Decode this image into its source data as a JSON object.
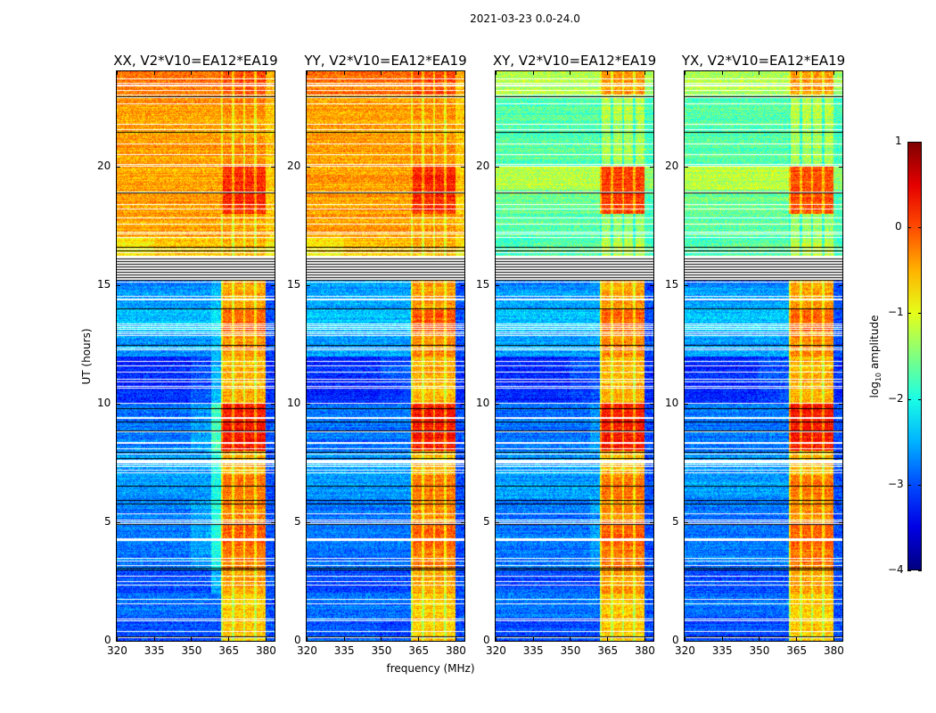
{
  "suptitle": "2021-03-23 0.0-24.0",
  "ylabel": "UT (hours)",
  "xlabel": "frequency (MHz)",
  "colorbar": {
    "label_prefix": "log",
    "label_sub": "10",
    "label_suffix": " amplitude",
    "range": [
      -4,
      1
    ],
    "ticks": [
      1,
      0,
      -1,
      -2,
      -3,
      -4
    ],
    "tick_labels": [
      "1",
      "0",
      "−1",
      "−2",
      "−3",
      "−4"
    ],
    "colormap": "jet"
  },
  "chart_data": {
    "type": "heatmap",
    "title": "2021-03-23 0.0-24.0",
    "xlabel": "frequency (MHz)",
    "ylabel": "UT (hours)",
    "xlim": [
      320,
      383.6
    ],
    "ylim": [
      0,
      24
    ],
    "xticks": [
      320,
      335,
      350,
      365,
      380
    ],
    "yticks": [
      0,
      5,
      10,
      15,
      20
    ],
    "freq_bin_edges": [
      320,
      335,
      350,
      358,
      362,
      380,
      383.6
    ],
    "time_bins_hours": "hourly rows 0-23, bottom to top",
    "value_units": "log10 amplitude",
    "panels": [
      {
        "title": "XX, V2*V10=EA12*EA19",
        "values": [
          [
            -3.0,
            -3.0,
            -3.0,
            -3.0,
            -0.6,
            -3.0
          ],
          [
            -2.8,
            -2.8,
            -2.8,
            -2.8,
            -0.6,
            -3.0
          ],
          [
            -3.0,
            -3.0,
            -3.0,
            -2.5,
            -0.4,
            -3.0
          ],
          [
            -2.8,
            -2.8,
            -2.6,
            -2.0,
            -0.2,
            -3.0
          ],
          [
            -2.8,
            -2.8,
            -2.6,
            -2.0,
            -0.1,
            -3.0
          ],
          [
            -2.8,
            -2.8,
            -2.6,
            -2.0,
            -0.3,
            -3.0
          ],
          [
            -2.6,
            -2.6,
            -2.6,
            -2.0,
            -0.2,
            -3.0
          ],
          [
            -2.6,
            -2.6,
            -2.6,
            -2.0,
            -0.5,
            -3.0
          ],
          [
            -2.8,
            -2.8,
            -2.6,
            -1.8,
            0.3,
            -3.0
          ],
          [
            -2.8,
            -2.8,
            -2.6,
            -1.8,
            0.3,
            -3.0
          ],
          [
            -3.2,
            -3.2,
            -3.0,
            -2.5,
            -0.5,
            -3.2
          ],
          [
            -3.2,
            -3.2,
            -3.0,
            -2.5,
            -0.5,
            -3.2
          ],
          [
            -2.6,
            -2.6,
            -2.6,
            -2.4,
            -0.3,
            -3.0
          ],
          [
            -2.4,
            -2.4,
            -2.4,
            -2.2,
            -0.1,
            -3.0
          ],
          [
            -2.6,
            -2.6,
            -2.6,
            -2.4,
            -0.4,
            -3.0
          ],
          [
            -2.8,
            -2.8,
            -2.8,
            -2.6,
            -0.4,
            -3.0
          ],
          [
            -0.8,
            -0.6,
            -0.6,
            -0.6,
            -0.5,
            -0.8
          ],
          [
            -0.4,
            -0.4,
            -0.4,
            -0.4,
            -0.4,
            -0.6
          ],
          [
            -0.4,
            -0.4,
            -0.4,
            -0.4,
            0.2,
            -0.6
          ],
          [
            -0.4,
            -0.4,
            -0.4,
            -0.4,
            0.2,
            -0.6
          ],
          [
            -0.4,
            -0.4,
            -0.4,
            -0.4,
            -0.3,
            -0.6
          ],
          [
            -0.4,
            -0.4,
            -0.4,
            -0.4,
            -0.4,
            -0.6
          ],
          [
            -0.4,
            -0.4,
            -0.4,
            -0.4,
            -0.3,
            -0.6
          ],
          [
            -0.2,
            -0.2,
            -0.2,
            -0.2,
            0.0,
            -0.5
          ]
        ]
      },
      {
        "title": "YY, V2*V10=EA12*EA19",
        "values": [
          [
            -2.9,
            -2.9,
            -3.0,
            -3.0,
            -0.6,
            -3.0
          ],
          [
            -2.8,
            -2.8,
            -2.8,
            -2.8,
            -0.6,
            -3.0
          ],
          [
            -3.0,
            -3.0,
            -3.0,
            -3.0,
            -0.4,
            -3.0
          ],
          [
            -2.8,
            -2.8,
            -2.8,
            -2.8,
            -0.2,
            -3.0
          ],
          [
            -2.8,
            -2.8,
            -2.8,
            -2.8,
            -0.1,
            -3.0
          ],
          [
            -2.8,
            -2.8,
            -2.8,
            -2.8,
            -0.3,
            -3.0
          ],
          [
            -2.6,
            -2.6,
            -2.6,
            -2.6,
            -0.2,
            -3.0
          ],
          [
            -2.6,
            -2.6,
            -2.6,
            -2.6,
            -0.5,
            -3.0
          ],
          [
            -2.8,
            -2.8,
            -2.8,
            -2.8,
            0.3,
            -3.0
          ],
          [
            -2.8,
            -2.8,
            -2.8,
            -2.8,
            0.3,
            -3.0
          ],
          [
            -3.2,
            -3.2,
            -3.1,
            -3.0,
            -0.5,
            -3.2
          ],
          [
            -3.2,
            -3.2,
            -3.0,
            -3.0,
            -0.5,
            -3.2
          ],
          [
            -2.6,
            -2.6,
            -2.6,
            -2.6,
            -0.3,
            -3.0
          ],
          [
            -2.4,
            -2.4,
            -2.4,
            -2.4,
            0.0,
            -3.0
          ],
          [
            -2.6,
            -2.6,
            -2.6,
            -2.6,
            -0.4,
            -3.0
          ],
          [
            -2.6,
            -2.6,
            -2.6,
            -2.6,
            -0.4,
            -3.0
          ],
          [
            -0.8,
            -0.6,
            -0.6,
            -0.6,
            -0.5,
            -0.8
          ],
          [
            -0.4,
            -0.4,
            -0.4,
            -0.4,
            -0.4,
            -0.6
          ],
          [
            -0.4,
            -0.4,
            -0.4,
            -0.4,
            0.2,
            -0.6
          ],
          [
            -0.4,
            -0.4,
            -0.4,
            -0.4,
            0.2,
            -0.6
          ],
          [
            -0.4,
            -0.4,
            -0.4,
            -0.4,
            -0.3,
            -0.6
          ],
          [
            -0.4,
            -0.4,
            -0.4,
            -0.4,
            -0.4,
            -0.6
          ],
          [
            -0.4,
            -0.4,
            -0.4,
            -0.4,
            -0.3,
            -0.6
          ],
          [
            -0.2,
            -0.2,
            -0.2,
            -0.2,
            0.0,
            -0.5
          ]
        ]
      },
      {
        "title": "XY, V2*V10=EA12*EA19",
        "values": [
          [
            -3.0,
            -3.0,
            -3.0,
            -3.0,
            -0.6,
            -3.0
          ],
          [
            -2.8,
            -2.8,
            -2.8,
            -2.8,
            -0.6,
            -3.0
          ],
          [
            -3.0,
            -3.0,
            -3.0,
            -3.0,
            -0.4,
            -3.0
          ],
          [
            -2.8,
            -2.8,
            -2.8,
            -2.6,
            -0.2,
            -3.0
          ],
          [
            -2.8,
            -2.8,
            -2.8,
            -2.6,
            -0.1,
            -3.0
          ],
          [
            -2.8,
            -2.8,
            -2.8,
            -2.6,
            -0.3,
            -3.0
          ],
          [
            -2.6,
            -2.6,
            -2.6,
            -2.6,
            -0.2,
            -3.0
          ],
          [
            -2.6,
            -2.6,
            -2.6,
            -2.6,
            -0.5,
            -3.0
          ],
          [
            -2.8,
            -2.8,
            -2.8,
            -2.6,
            0.3,
            -3.0
          ],
          [
            -2.8,
            -2.8,
            -2.8,
            -2.6,
            0.3,
            -3.0
          ],
          [
            -3.2,
            -3.2,
            -3.1,
            -3.0,
            -0.5,
            -3.2
          ],
          [
            -3.2,
            -3.2,
            -3.0,
            -3.0,
            -0.5,
            -3.2
          ],
          [
            -2.6,
            -2.6,
            -2.6,
            -2.6,
            -0.3,
            -3.0
          ],
          [
            -2.4,
            -2.4,
            -2.4,
            -2.4,
            -0.1,
            -3.0
          ],
          [
            -2.6,
            -2.6,
            -2.6,
            -2.6,
            -0.4,
            -3.0
          ],
          [
            -2.8,
            -2.8,
            -2.8,
            -2.6,
            -0.4,
            -3.0
          ],
          [
            -1.8,
            -1.7,
            -1.7,
            -1.7,
            -1.2,
            -1.8
          ],
          [
            -1.7,
            -1.7,
            -1.7,
            -1.7,
            -1.4,
            -1.8
          ],
          [
            -1.6,
            -1.6,
            -1.6,
            -1.6,
            0.1,
            -1.8
          ],
          [
            -1.2,
            -1.2,
            -1.2,
            -1.2,
            0.1,
            -1.4
          ],
          [
            -1.7,
            -1.7,
            -1.7,
            -1.7,
            -1.3,
            -1.8
          ],
          [
            -1.7,
            -1.7,
            -1.7,
            -1.7,
            -1.3,
            -1.8
          ],
          [
            -1.7,
            -1.7,
            -1.7,
            -1.7,
            -1.2,
            -1.8
          ],
          [
            -1.3,
            -1.3,
            -1.3,
            -1.3,
            -0.4,
            -1.4
          ]
        ]
      },
      {
        "title": "YX, V2*V10=EA12*EA19",
        "values": [
          [
            -3.0,
            -3.0,
            -3.0,
            -3.0,
            -0.6,
            -3.0
          ],
          [
            -2.8,
            -2.8,
            -2.8,
            -2.8,
            -0.6,
            -3.0
          ],
          [
            -3.0,
            -3.0,
            -3.0,
            -3.0,
            -0.4,
            -3.0
          ],
          [
            -2.8,
            -2.8,
            -2.8,
            -2.8,
            -0.2,
            -3.0
          ],
          [
            -2.8,
            -2.8,
            -2.8,
            -2.8,
            -0.1,
            -3.0
          ],
          [
            -2.8,
            -2.8,
            -2.8,
            -2.8,
            -0.3,
            -3.0
          ],
          [
            -2.6,
            -2.6,
            -2.6,
            -2.6,
            -0.2,
            -3.0
          ],
          [
            -2.6,
            -2.6,
            -2.6,
            -2.6,
            -0.5,
            -3.0
          ],
          [
            -2.8,
            -2.8,
            -2.8,
            -2.8,
            0.3,
            -3.0
          ],
          [
            -2.8,
            -2.8,
            -2.8,
            -2.8,
            0.3,
            -3.0
          ],
          [
            -3.2,
            -3.2,
            -3.1,
            -3.0,
            -0.5,
            -3.2
          ],
          [
            -3.2,
            -3.2,
            -3.0,
            -3.0,
            -0.5,
            -3.2
          ],
          [
            -2.6,
            -2.6,
            -2.6,
            -2.6,
            -0.3,
            -3.0
          ],
          [
            -2.4,
            -2.4,
            -2.4,
            -2.4,
            -0.1,
            -3.0
          ],
          [
            -2.6,
            -2.6,
            -2.6,
            -2.6,
            -0.4,
            -3.0
          ],
          [
            -2.8,
            -2.8,
            -2.8,
            -2.8,
            -0.4,
            -3.0
          ],
          [
            -1.8,
            -1.7,
            -1.7,
            -1.7,
            -1.2,
            -1.8
          ],
          [
            -1.7,
            -1.7,
            -1.7,
            -1.7,
            -1.4,
            -1.8
          ],
          [
            -1.6,
            -1.6,
            -1.6,
            -1.6,
            0.0,
            -1.8
          ],
          [
            -1.2,
            -1.2,
            -1.2,
            -1.2,
            0.0,
            -1.4
          ],
          [
            -1.7,
            -1.7,
            -1.7,
            -1.7,
            -1.3,
            -1.8
          ],
          [
            -1.7,
            -1.7,
            -1.7,
            -1.7,
            -1.3,
            -1.8
          ],
          [
            -1.7,
            -1.7,
            -1.7,
            -1.7,
            -1.2,
            -1.8
          ],
          [
            -1.3,
            -1.3,
            -1.3,
            -1.3,
            -0.4,
            -1.4
          ]
        ]
      }
    ]
  }
}
